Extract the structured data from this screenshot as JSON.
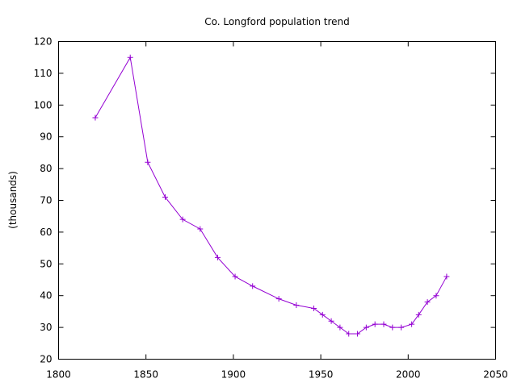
{
  "chart_data": {
    "type": "line",
    "title": "Co. Longford population trend",
    "xlabel": "",
    "ylabel": "(thousands)",
    "xlim": [
      1800,
      2050
    ],
    "ylim": [
      20,
      120
    ],
    "xticks": [
      1800,
      1850,
      1900,
      1950,
      2000,
      2050
    ],
    "yticks": [
      20,
      30,
      40,
      50,
      60,
      70,
      80,
      90,
      100,
      110,
      120
    ],
    "grid": false,
    "legend": "none",
    "series": [
      {
        "color": "#9400d3",
        "marker": "plus",
        "x": [
          1821,
          1841,
          1851,
          1861,
          1871,
          1881,
          1891,
          1901,
          1911,
          1926,
          1936,
          1946,
          1951,
          1956,
          1961,
          1966,
          1971,
          1976,
          1981,
          1986,
          1991,
          1996,
          2002,
          2006,
          2011,
          2016,
          2022
        ],
        "y": [
          96,
          115,
          82,
          71,
          64,
          61,
          52,
          46,
          43,
          39,
          37,
          36,
          34,
          32,
          30,
          28,
          28,
          30,
          31,
          31,
          30,
          30,
          31,
          34,
          38,
          40,
          46
        ]
      }
    ]
  }
}
